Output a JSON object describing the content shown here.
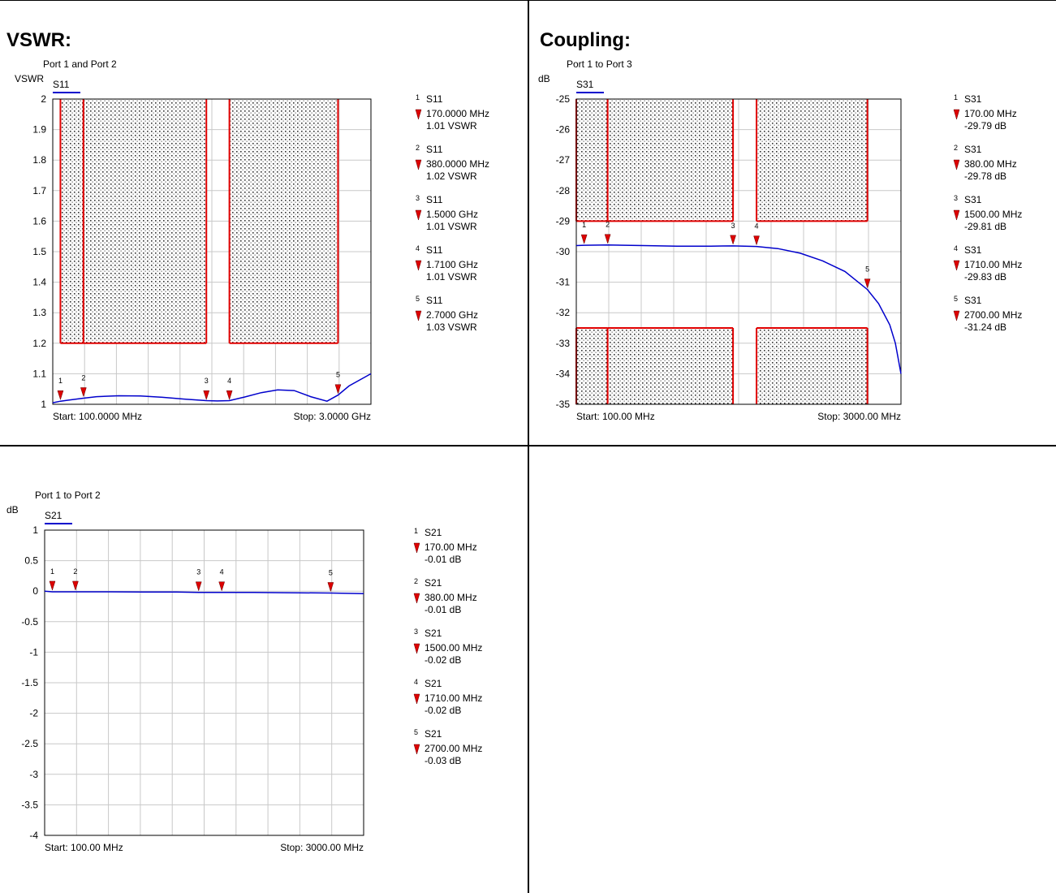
{
  "sections": [
    {
      "title": "VSWR:"
    },
    {
      "title": "Coupling:"
    }
  ],
  "colors": {
    "trace": "#0000cc",
    "limit": "#e00000",
    "marker": "#dd0000",
    "grid": "#c8c8c8"
  },
  "chart_data": [
    {
      "type": "line",
      "subtitle": "Port 1 and Port 2",
      "ylabel": "VSWR",
      "trace_name": "S11",
      "xlim": [
        100,
        3000
      ],
      "x_unit": "MHz",
      "ylim": [
        1,
        2
      ],
      "yticks": [
        1,
        1.1,
        1.2,
        1.3,
        1.4,
        1.5,
        1.6,
        1.7,
        1.8,
        1.9,
        2
      ],
      "ytick_labels": [
        "1",
        "1.1",
        "1.2",
        "1.3",
        "1.4",
        "1.5",
        "1.6",
        "1.7",
        "1.8",
        "1.9",
        "2"
      ],
      "start_label": "Start: 100.0000 MHz",
      "stop_label": "Stop: 3.0000 GHz",
      "series": [
        {
          "x": [
            100,
            170,
            250,
            380,
            500,
            700,
            900,
            1100,
            1300,
            1500,
            1600,
            1710,
            1850,
            2000,
            2150,
            2300,
            2450,
            2600,
            2700,
            2800,
            3000
          ],
          "y": [
            1.005,
            1.01,
            1.014,
            1.02,
            1.025,
            1.028,
            1.027,
            1.023,
            1.017,
            1.012,
            1.011,
            1.012,
            1.024,
            1.038,
            1.047,
            1.045,
            1.025,
            1.01,
            1.03,
            1.06,
            1.1
          ]
        }
      ],
      "limit_regions": [
        {
          "x": [
            170,
            380
          ],
          "y": [
            1.2,
            2
          ]
        },
        {
          "x": [
            380,
            1500
          ],
          "y": [
            1.2,
            2
          ]
        },
        {
          "x": [
            1710,
            2700
          ],
          "y": [
            1.2,
            2
          ]
        }
      ],
      "markers": [
        {
          "n": "1",
          "x": 170,
          "y": 1.01,
          "trace": "S11",
          "freq": "170.0000 MHz",
          "value": "1.01 VSWR"
        },
        {
          "n": "2",
          "x": 380,
          "y": 1.02,
          "trace": "S11",
          "freq": "380.0000 MHz",
          "value": "1.02 VSWR"
        },
        {
          "n": "3",
          "x": 1500,
          "y": 1.01,
          "trace": "S11",
          "freq": "1.5000 GHz",
          "value": "1.01 VSWR"
        },
        {
          "n": "4",
          "x": 1710,
          "y": 1.01,
          "trace": "S11",
          "freq": "1.7100 GHz",
          "value": "1.01 VSWR"
        },
        {
          "n": "5",
          "x": 2700,
          "y": 1.03,
          "trace": "S11",
          "freq": "2.7000 GHz",
          "value": "1.03 VSWR"
        }
      ]
    },
    {
      "type": "line",
      "subtitle": "Port 1 to Port 3",
      "ylabel": "dB",
      "trace_name": "S31",
      "xlim": [
        100,
        3000
      ],
      "x_unit": "MHz",
      "ylim": [
        -35,
        -25
      ],
      "yticks": [
        -35,
        -34,
        -33,
        -32,
        -31,
        -30,
        -29,
        -28,
        -27,
        -26,
        -25
      ],
      "ytick_labels": [
        "-35",
        "-34",
        "-33",
        "-32",
        "-31",
        "-30",
        "-29",
        "-28",
        "-27",
        "-26",
        "-25"
      ],
      "start_label": "Start: 100.00 MHz",
      "stop_label": "Stop: 3000.00 MHz",
      "series": [
        {
          "x": [
            100,
            170,
            380,
            700,
            1000,
            1300,
            1500,
            1710,
            1900,
            2100,
            2300,
            2500,
            2700,
            2800,
            2900,
            2950,
            3000
          ],
          "y": [
            -29.8,
            -29.79,
            -29.78,
            -29.8,
            -29.82,
            -29.82,
            -29.81,
            -29.83,
            -29.9,
            -30.05,
            -30.3,
            -30.65,
            -31.24,
            -31.7,
            -32.4,
            -33.0,
            -34.0
          ]
        }
      ],
      "limit_regions": [
        {
          "x": [
            100,
            380
          ],
          "y": [
            -29,
            -25
          ]
        },
        {
          "x": [
            380,
            1500
          ],
          "y": [
            -29,
            -25
          ]
        },
        {
          "x": [
            1710,
            2700
          ],
          "y": [
            -29,
            -25
          ]
        },
        {
          "x": [
            100,
            380
          ],
          "y": [
            -35,
            -32.5
          ]
        },
        {
          "x": [
            380,
            1500
          ],
          "y": [
            -35,
            -32.5
          ]
        },
        {
          "x": [
            1710,
            2700
          ],
          "y": [
            -35,
            -32.5
          ]
        }
      ],
      "markers": [
        {
          "n": "1",
          "x": 170,
          "y": -29.79,
          "trace": "S31",
          "freq": "170.00 MHz",
          "value": "-29.79 dB"
        },
        {
          "n": "2",
          "x": 380,
          "y": -29.78,
          "trace": "S31",
          "freq": "380.00 MHz",
          "value": "-29.78 dB"
        },
        {
          "n": "3",
          "x": 1500,
          "y": -29.81,
          "trace": "S31",
          "freq": "1500.00 MHz",
          "value": "-29.81 dB"
        },
        {
          "n": "4",
          "x": 1710,
          "y": -29.83,
          "trace": "S31",
          "freq": "1710.00 MHz",
          "value": "-29.83 dB"
        },
        {
          "n": "5",
          "x": 2700,
          "y": -31.24,
          "trace": "S31",
          "freq": "2700.00 MHz",
          "value": "-31.24 dB"
        }
      ]
    },
    {
      "type": "line",
      "subtitle": "Port 1 to Port 2",
      "ylabel": "dB",
      "trace_name": "S21",
      "xlim": [
        100,
        3000
      ],
      "x_unit": "MHz",
      "ylim": [
        -4,
        1
      ],
      "yticks": [
        -4,
        -3.5,
        -3,
        -2.5,
        -2,
        -1.5,
        -1,
        -0.5,
        0,
        0.5,
        1
      ],
      "ytick_labels": [
        "-4",
        "-3.5",
        "-3",
        "-2.5",
        "-2",
        "-1.5",
        "-1",
        "-0.5",
        "0",
        "0.5",
        "1"
      ],
      "start_label": "Start: 100.00 MHz",
      "stop_label": "Stop: 3000.00 MHz",
      "series": [
        {
          "x": [
            100,
            170,
            380,
            700,
            1000,
            1300,
            1500,
            1710,
            2000,
            2300,
            2700,
            3000
          ],
          "y": [
            0,
            -0.01,
            -0.01,
            -0.01,
            -0.015,
            -0.015,
            -0.02,
            -0.02,
            -0.02,
            -0.025,
            -0.03,
            -0.04
          ]
        }
      ],
      "limit_regions": [],
      "markers": [
        {
          "n": "1",
          "x": 170,
          "y": -0.01,
          "trace": "S21",
          "freq": "170.00 MHz",
          "value": "-0.01 dB"
        },
        {
          "n": "2",
          "x": 380,
          "y": -0.01,
          "trace": "S21",
          "freq": "380.00 MHz",
          "value": "-0.01 dB"
        },
        {
          "n": "3",
          "x": 1500,
          "y": -0.02,
          "trace": "S21",
          "freq": "1500.00 MHz",
          "value": "-0.02 dB"
        },
        {
          "n": "4",
          "x": 1710,
          "y": -0.02,
          "trace": "S21",
          "freq": "1710.00 MHz",
          "value": "-0.02 dB"
        },
        {
          "n": "5",
          "x": 2700,
          "y": -0.03,
          "trace": "S21",
          "freq": "2700.00 MHz",
          "value": "-0.03 dB"
        }
      ]
    }
  ]
}
